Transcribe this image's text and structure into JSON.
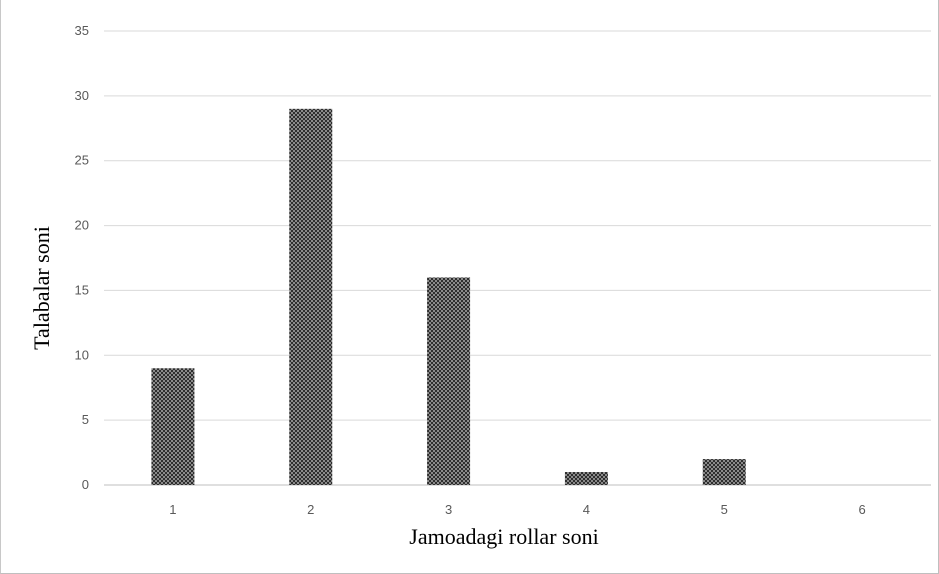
{
  "chart_data": {
    "type": "bar",
    "title": "",
    "xlabel": "Jamoadagi rollar soni",
    "ylabel": "Talabalar soni",
    "categories": [
      "1",
      "2",
      "3",
      "4",
      "5",
      "6"
    ],
    "values": [
      9,
      29,
      16,
      1,
      2,
      0
    ],
    "ylim": [
      0,
      35
    ],
    "yticks": [
      "0",
      "5",
      "10",
      "15",
      "20",
      "25",
      "30",
      "35"
    ],
    "grid": true,
    "legend": "none",
    "bar_color": "#555555",
    "bar_pattern": "checkered-hatch"
  }
}
